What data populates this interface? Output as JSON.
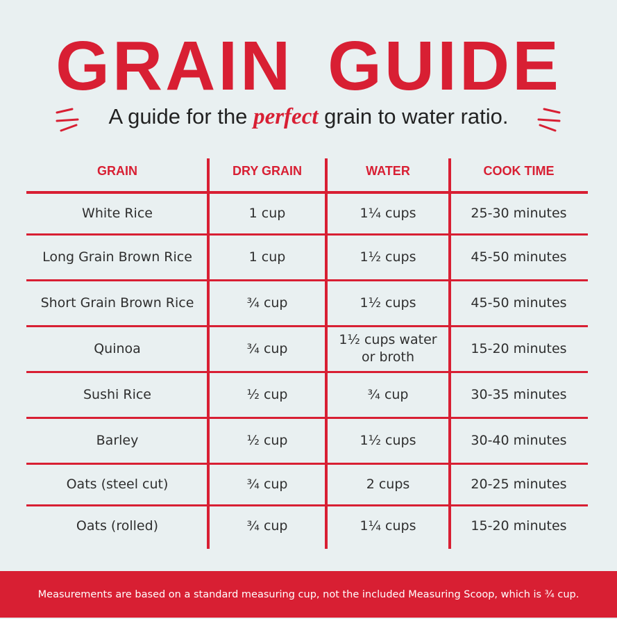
{
  "header": {
    "title": "GRAIN GUIDE",
    "subtitle_before": "A guide for the",
    "subtitle_emphasis": "perfect",
    "subtitle_after": "grain to water ratio."
  },
  "table": {
    "columns": [
      "GRAIN",
      "DRY GRAIN",
      "WATER",
      "COOK TIME"
    ],
    "rows": [
      [
        "White Rice",
        "1 cup",
        "1¼ cups",
        "25-30 minutes"
      ],
      [
        "Long Grain Brown Rice",
        "1 cup",
        "1½ cups",
        "45-50 minutes"
      ],
      [
        "Short Grain Brown Rice",
        "¾ cup",
        "1½ cups",
        "45-50 minutes"
      ],
      [
        "Quinoa",
        "¾ cup",
        "1½ cups water or broth",
        "15-20 minutes"
      ],
      [
        "Sushi Rice",
        "½ cup",
        "¾ cup",
        "30-35 minutes"
      ],
      [
        "Barley",
        "½ cup",
        "1½ cups",
        "30-40 minutes"
      ],
      [
        "Oats (steel cut)",
        "¾ cup",
        "2 cups",
        "20-25 minutes"
      ],
      [
        "Oats (rolled)",
        "¾ cup",
        "1¼ cups",
        "15-20 minutes"
      ]
    ]
  },
  "footer": {
    "note": "Measurements are based on a standard measuring cup, not the included Measuring Scoop, which is ¾ cup."
  }
}
